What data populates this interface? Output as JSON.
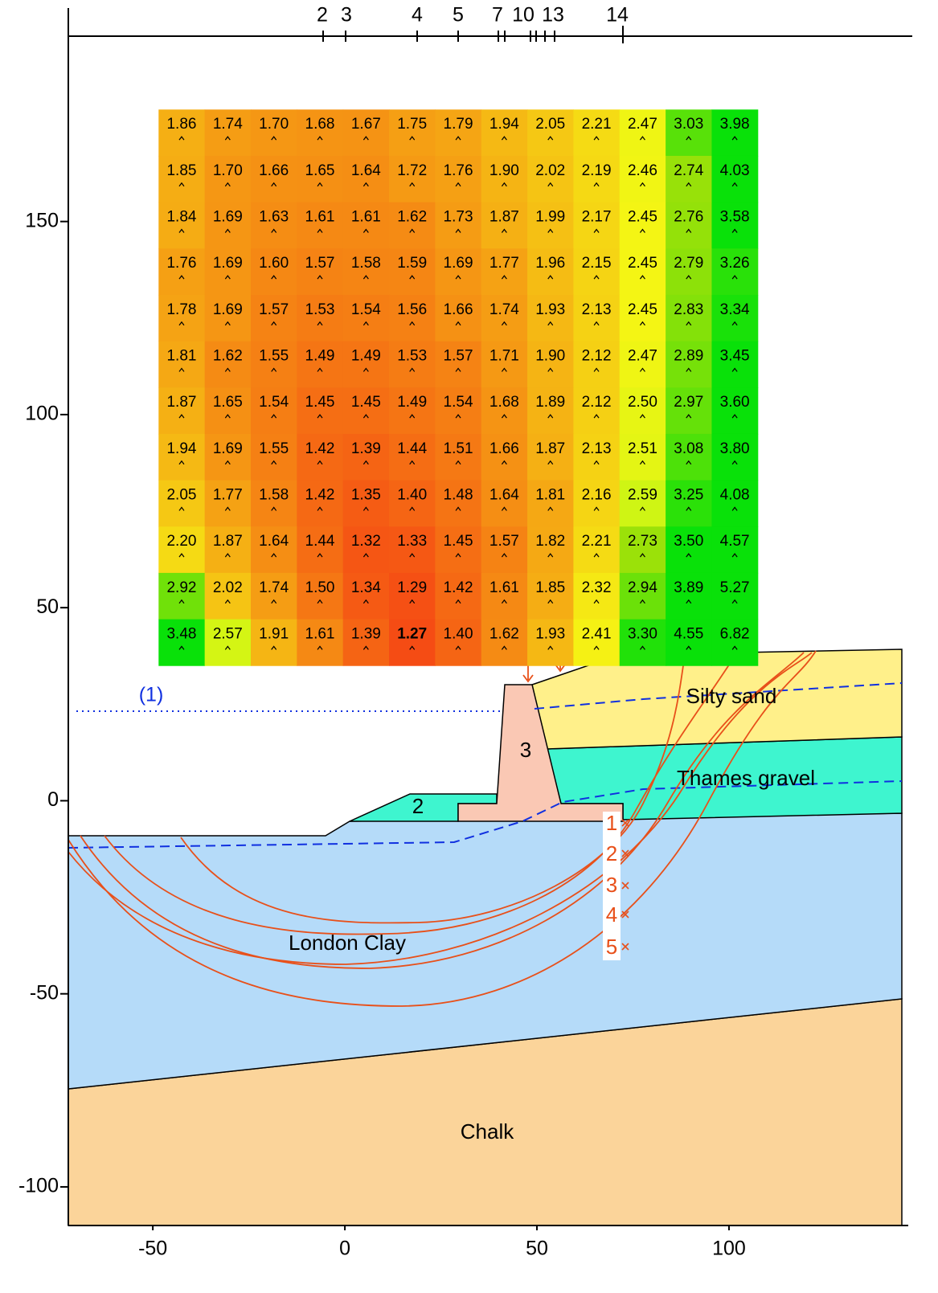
{
  "chart_data": {
    "type": "heatmap",
    "xlim": [
      -72,
      145
    ],
    "ylim": [
      -110,
      198
    ],
    "xticks": [
      -50,
      0,
      50,
      100
    ],
    "yticks": [
      -100,
      -50,
      0,
      50,
      100,
      150
    ],
    "x": [
      -42.5,
      -30.5,
      -18.5,
      -6.5,
      5.5,
      17.5,
      29.5,
      41.5,
      53.5,
      65.5,
      77.5,
      89.5,
      101.5
    ],
    "y": [
      173,
      161,
      149,
      137,
      125,
      113,
      101,
      89,
      77,
      65,
      53,
      41
    ],
    "z": [
      [
        1.86,
        1.74,
        1.7,
        1.68,
        1.67,
        1.75,
        1.79,
        1.94,
        2.05,
        2.21,
        2.47,
        3.03,
        3.98
      ],
      [
        1.85,
        1.7,
        1.66,
        1.65,
        1.64,
        1.72,
        1.76,
        1.9,
        2.02,
        2.19,
        2.46,
        2.74,
        4.03
      ],
      [
        1.84,
        1.69,
        1.63,
        1.61,
        1.61,
        1.62,
        1.73,
        1.87,
        1.99,
        2.17,
        2.45,
        2.76,
        3.58
      ],
      [
        1.76,
        1.69,
        1.6,
        1.57,
        1.58,
        1.59,
        1.69,
        1.77,
        1.96,
        2.15,
        2.45,
        2.79,
        3.26
      ],
      [
        1.78,
        1.69,
        1.57,
        1.53,
        1.54,
        1.56,
        1.66,
        1.74,
        1.93,
        2.13,
        2.45,
        2.83,
        3.34
      ],
      [
        1.81,
        1.62,
        1.55,
        1.49,
        1.49,
        1.53,
        1.57,
        1.71,
        1.9,
        2.12,
        2.47,
        2.89,
        3.45
      ],
      [
        1.87,
        1.65,
        1.54,
        1.45,
        1.45,
        1.49,
        1.54,
        1.68,
        1.89,
        2.12,
        2.5,
        2.97,
        3.6
      ],
      [
        1.94,
        1.69,
        1.55,
        1.42,
        1.39,
        1.44,
        1.51,
        1.66,
        1.87,
        2.13,
        2.51,
        3.08,
        3.8
      ],
      [
        2.05,
        1.77,
        1.58,
        1.42,
        1.35,
        1.4,
        1.48,
        1.64,
        1.81,
        2.16,
        2.59,
        3.25,
        4.08
      ],
      [
        2.2,
        1.87,
        1.64,
        1.44,
        1.32,
        1.33,
        1.45,
        1.57,
        1.82,
        2.21,
        2.73,
        3.5,
        4.57
      ],
      [
        2.92,
        2.02,
        1.74,
        1.5,
        1.34,
        1.29,
        1.42,
        1.61,
        1.85,
        2.32,
        2.94,
        3.89,
        5.27
      ],
      [
        3.48,
        2.57,
        1.91,
        1.61,
        1.39,
        1.27,
        1.4,
        1.62,
        1.93,
        2.41,
        3.3,
        4.55,
        6.82
      ]
    ],
    "value_labels": [
      [
        "1.86",
        "1.74",
        "1.70",
        "1.68",
        "1.67",
        "1.75",
        "1.79",
        "1.94",
        "2.05",
        "2.21",
        "2.47",
        "3.03",
        "3.98"
      ],
      [
        "1.85",
        "1.70",
        "1.66",
        "1.65",
        "1.64",
        "1.72",
        "1.76",
        "1.90",
        "2.02",
        "2.19",
        "2.46",
        "2.74",
        "4.03"
      ],
      [
        "1.84",
        "1.69",
        "1.63",
        "1.61",
        "1.61",
        "1.62",
        "1.73",
        "1.87",
        "1.99",
        "2.17",
        "2.45",
        "2.76",
        "3.58"
      ],
      [
        "1.76",
        "1.69",
        "1.60",
        "1.57",
        "1.58",
        "1.59",
        "1.69",
        "1.77",
        "1.96",
        "2.15",
        "2.45",
        "2.79",
        "3.26"
      ],
      [
        "1.78",
        "1.69",
        "1.57",
        "1.53",
        "1.54",
        "1.56",
        "1.66",
        "1.74",
        "1.93",
        "2.13",
        "2.45",
        "2.83",
        "3.34"
      ],
      [
        "1.81",
        "1.62",
        "1.55",
        "1.49",
        "1.49",
        "1.53",
        "1.57",
        "1.71",
        "1.90",
        "2.12",
        "2.47",
        "2.89",
        "3.45"
      ],
      [
        "1.87",
        "1.65",
        "1.54",
        "1.45",
        "1.45",
        "1.49",
        "1.54",
        "1.68",
        "1.89",
        "2.12",
        "2.50",
        "2.97",
        "3.60"
      ],
      [
        "1.94",
        "1.69",
        "1.55",
        "1.42",
        "1.39",
        "1.44",
        "1.51",
        "1.66",
        "1.87",
        "2.13",
        "2.51",
        "3.08",
        "3.80"
      ],
      [
        "2.05",
        "1.77",
        "1.58",
        "1.42",
        "1.35",
        "1.40",
        "1.48",
        "1.64",
        "1.81",
        "2.16",
        "2.59",
        "3.25",
        "4.08"
      ],
      [
        "2.20",
        "1.87",
        "1.64",
        "1.44",
        "1.32",
        "1.33",
        "1.45",
        "1.57",
        "1.82",
        "2.21",
        "2.73",
        "3.50",
        "4.57"
      ],
      [
        "2.92",
        "2.02",
        "1.74",
        "1.50",
        "1.34",
        "1.29",
        "1.42",
        "1.61",
        "1.85",
        "2.32",
        "2.94",
        "3.89",
        "5.27"
      ],
      [
        "3.48",
        "2.57",
        "1.91",
        "1.61",
        "1.39",
        "1.27",
        "1.40",
        "1.62",
        "1.93",
        "2.41",
        "3.30",
        "4.55",
        "6.82"
      ]
    ],
    "layers": [
      "Silty sand",
      "Thames gravel",
      "London Clay",
      "Chalk"
    ],
    "regions": [
      "2",
      "3"
    ],
    "water_label": "(1)",
    "slip_labels": [
      "1",
      "2",
      "3",
      "4",
      "5"
    ],
    "top_markers": [
      "2",
      "3",
      "4",
      "5",
      "7",
      "10",
      "13",
      "14"
    ]
  }
}
